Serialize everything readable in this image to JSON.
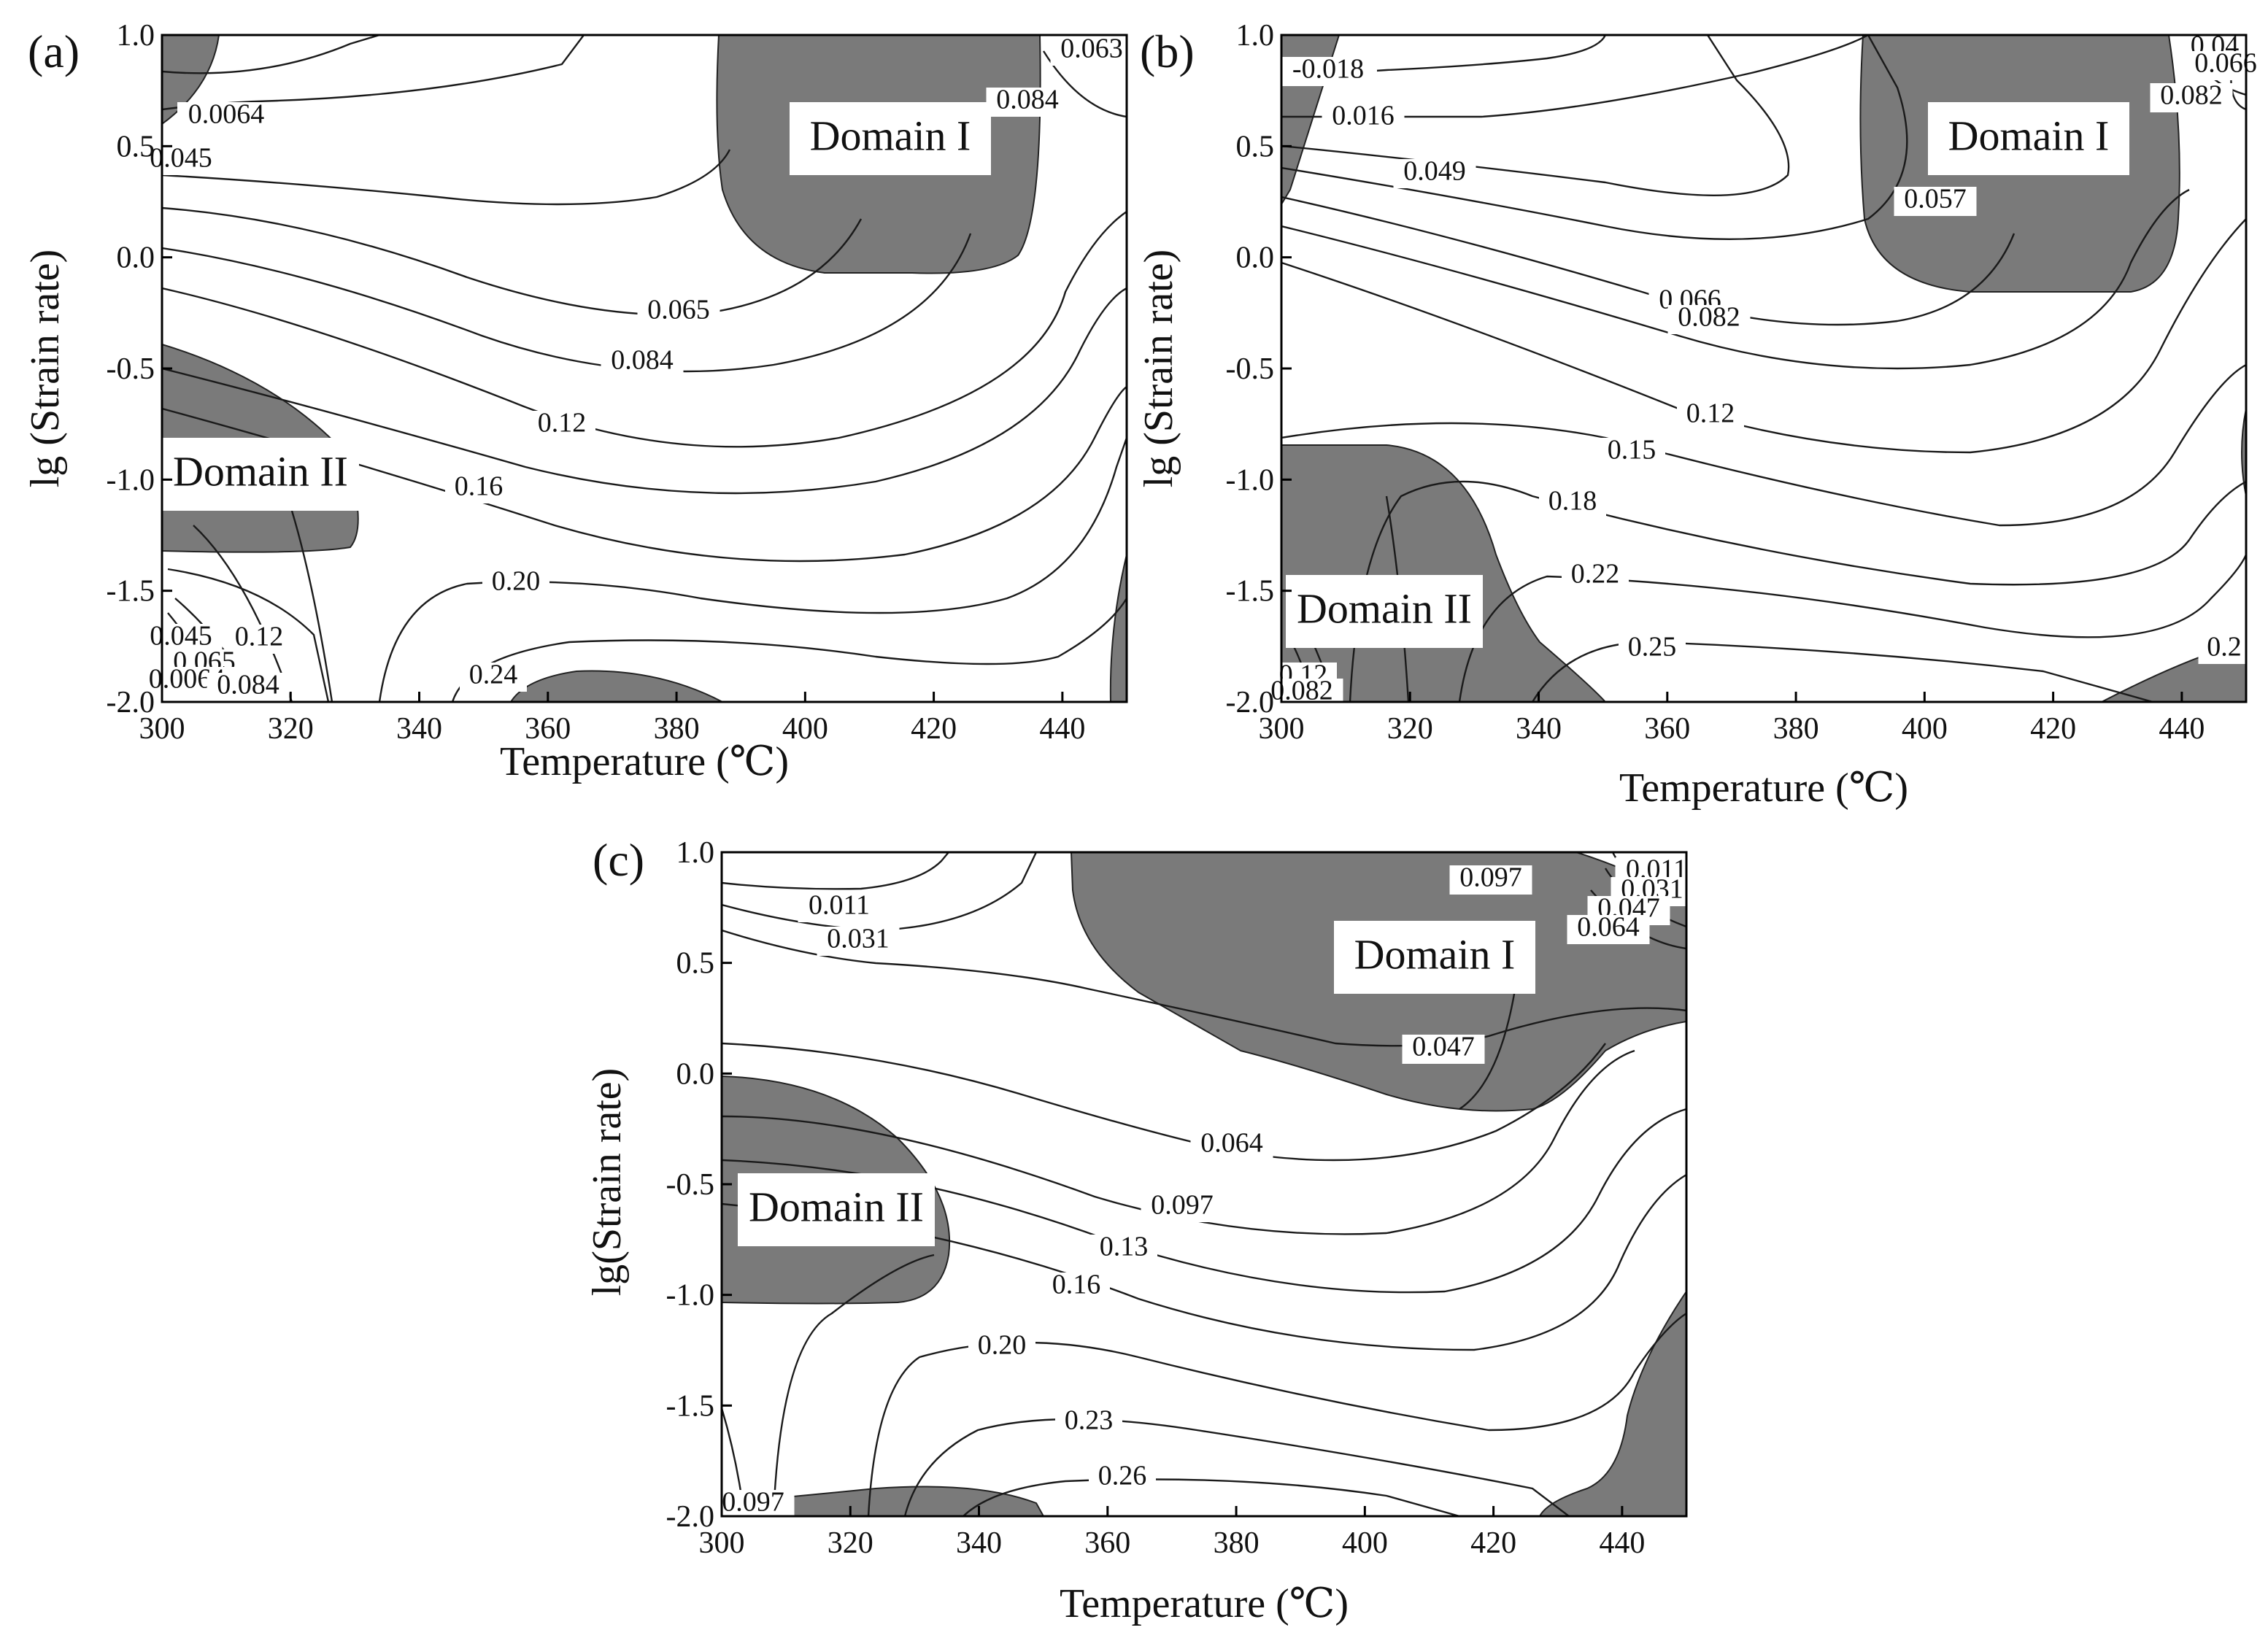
{
  "chart_data": [
    {
      "panel": "(a)",
      "type": "contour",
      "xlabel": "Temperature (℃)",
      "ylabel": "lg (Strain rate)",
      "xlim": [
        300,
        450
      ],
      "ylim": [
        -2.0,
        1.0
      ],
      "xticks": [
        "300",
        "320",
        "340",
        "360",
        "380",
        "400",
        "420",
        "440"
      ],
      "yticks": [
        "1.0",
        "0.5",
        "0.0",
        "-0.5",
        "-1.0",
        "-1.5",
        "-2.0"
      ],
      "domain_fill_color": "#7a7a7a",
      "domains": [
        "Domain I",
        "Domain II"
      ],
      "contour_labels": [
        "0.063",
        "0.084",
        "0.0064",
        "0.045",
        "0.065",
        "0.084",
        "0.12",
        "0.16",
        "0.20",
        "0.24",
        "0.045",
        "0.12",
        "0.065",
        "0.0064",
        "0.084"
      ]
    },
    {
      "panel": "(b)",
      "type": "contour",
      "xlabel": "Temperature (℃)",
      "ylabel": "lg (Strain rate)",
      "xlim": [
        300,
        450
      ],
      "ylim": [
        -2.0,
        1.0
      ],
      "xticks": [
        "300",
        "320",
        "340",
        "360",
        "380",
        "400",
        "420",
        "440"
      ],
      "yticks": [
        "1.0",
        "0.5",
        "0.0",
        "-0.5",
        "-1.0",
        "-1.5",
        "-2.0"
      ],
      "domain_fill_color": "#7a7a7a",
      "domains": [
        "Domain I",
        "Domain II"
      ],
      "contour_labels": [
        "-0.018",
        "0.016",
        "0.049",
        "0.04",
        "0.066",
        "0.082",
        "0.057",
        "0.066",
        "0.082",
        "0.12",
        "0.15",
        "0.18",
        "0.22",
        "0.25",
        "0.2",
        "0.12",
        "0.082"
      ]
    },
    {
      "panel": "(c)",
      "type": "contour",
      "xlabel": "Temperature (℃)",
      "ylabel": "lg(Strain rate)",
      "xlim": [
        300,
        450
      ],
      "ylim": [
        -2.0,
        1.0
      ],
      "xticks": [
        "300",
        "320",
        "340",
        "360",
        "380",
        "400",
        "420",
        "440"
      ],
      "yticks": [
        "1.0",
        "0.5",
        "0.0",
        "-0.5",
        "-1.0",
        "-1.5",
        "-2.0"
      ],
      "domain_fill_color": "#7a7a7a",
      "domains": [
        "Domain I",
        "Domain II"
      ],
      "contour_labels": [
        "0.011",
        "0.031",
        "0.097",
        "0.011",
        "0.031",
        "0.047",
        "0.064",
        "0.047",
        "0.064",
        "0.097",
        "0.13",
        "0.16",
        "0.20",
        "0.23",
        "0.26",
        "0.097"
      ]
    }
  ]
}
